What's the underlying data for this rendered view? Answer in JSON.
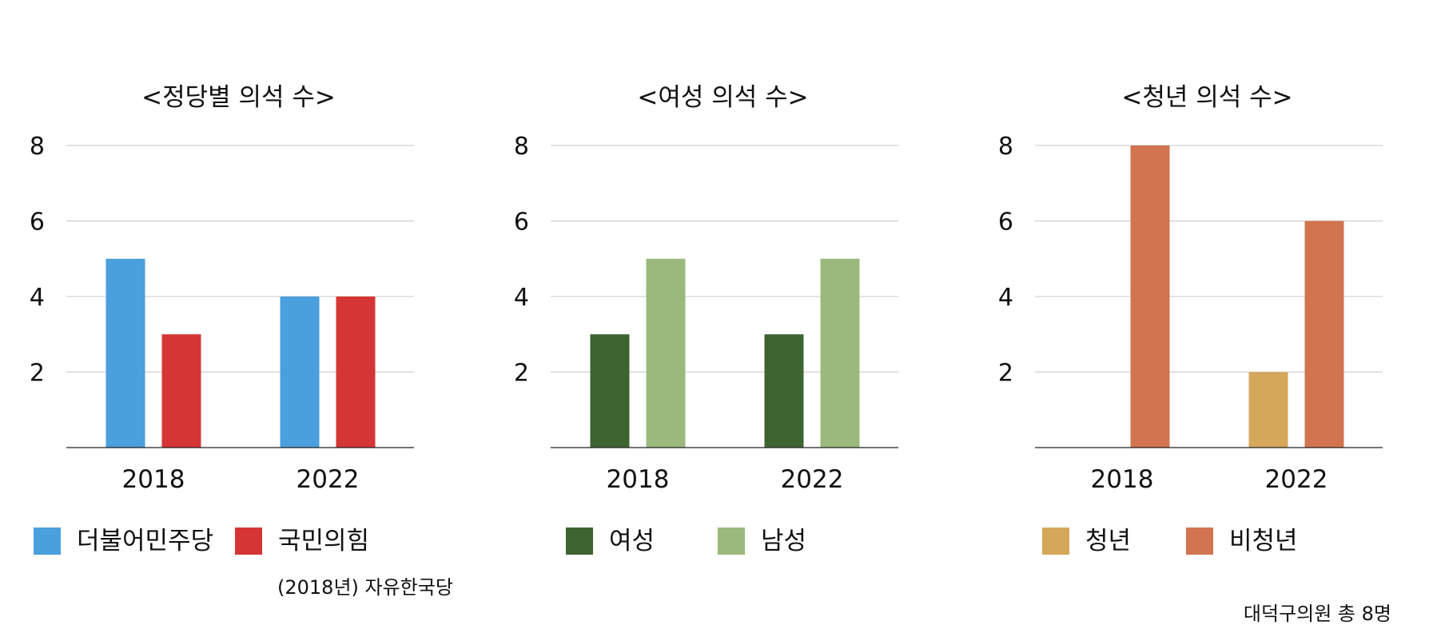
{
  "chart_data": [
    {
      "type": "bar",
      "title": "<정당별 의석 수>",
      "categories": [
        "2018",
        "2022"
      ],
      "yticks": [
        2,
        4,
        6,
        8
      ],
      "ylim": [
        0,
        8
      ],
      "grid": true,
      "legend_position": "bottom",
      "series": [
        {
          "name": "더불어민주당",
          "color": "#4a9fdd",
          "values": [
            5,
            4
          ]
        },
        {
          "name": "국민의힘",
          "color": "#d63536",
          "values": [
            3,
            4
          ]
        }
      ],
      "note": "(2018년) 자유한국당"
    },
    {
      "type": "bar",
      "title": "<여성 의석 수>",
      "categories": [
        "2018",
        "2022"
      ],
      "yticks": [
        2,
        4,
        6,
        8
      ],
      "ylim": [
        0,
        8
      ],
      "grid": true,
      "legend_position": "bottom",
      "series": [
        {
          "name": "여성",
          "color": "#3d6331",
          "values": [
            3,
            3
          ]
        },
        {
          "name": "남성",
          "color": "#9bb97c",
          "values": [
            5,
            5
          ]
        }
      ]
    },
    {
      "type": "bar",
      "title": "<청년 의석 수>",
      "categories": [
        "2018",
        "2022"
      ],
      "yticks": [
        2,
        4,
        6,
        8
      ],
      "ylim": [
        0,
        8
      ],
      "grid": true,
      "legend_position": "bottom",
      "series": [
        {
          "name": "청년",
          "color": "#d4a75b",
          "values": [
            0,
            2
          ]
        },
        {
          "name": "비청년",
          "color": "#d27450",
          "values": [
            8,
            6
          ]
        }
      ]
    }
  ],
  "footnote": "대덕구의원 총 8명"
}
